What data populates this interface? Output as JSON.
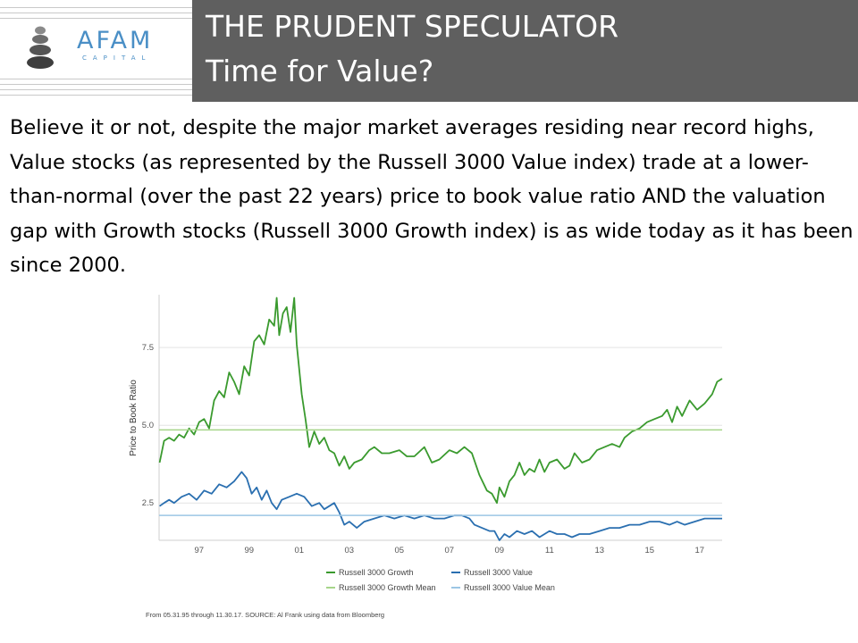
{
  "header": {
    "logo_text": "AFAM",
    "logo_subtext": "CAPITAL",
    "title_line1": "THE PRUDENT SPECULATOR",
    "title_line2": "Time for Value?"
  },
  "colors": {
    "header_bg": "#5f5f5f",
    "growth": "#3a9a2e",
    "value": "#2a6fb0",
    "growth_mean": "#a6d58a",
    "value_mean": "#9cc6e4"
  },
  "body_text": "Believe it or not, despite the major market averages residing near record highs, Value stocks (as represented by the Russell 3000 Value index) trade at a lower-than-normal (over the past 22 years) price to book value ratio AND the valuation gap with Growth stocks (Russell 3000 Growth index) is as wide today as it has been since 2000.",
  "source_note": "From 05.31.95 through 11.30.17. SOURCE: Al Frank using data from Bloomberg",
  "chart_data": {
    "type": "line",
    "ylabel": "Price to Book Ratio",
    "xlim": [
      1995.4,
      2017.9
    ],
    "ylim": [
      1.3,
      9.2
    ],
    "xticks": [
      {
        "value": 1997,
        "label": "97"
      },
      {
        "value": 1999,
        "label": "99"
      },
      {
        "value": 2001,
        "label": "01"
      },
      {
        "value": 2003,
        "label": "03"
      },
      {
        "value": 2005,
        "label": "05"
      },
      {
        "value": 2007,
        "label": "07"
      },
      {
        "value": 2009,
        "label": "09"
      },
      {
        "value": 2011,
        "label": "11"
      },
      {
        "value": 2013,
        "label": "13"
      },
      {
        "value": 2015,
        "label": "15"
      },
      {
        "value": 2017,
        "label": "17"
      }
    ],
    "yticks": [
      {
        "value": 2.5,
        "label": "2.5"
      },
      {
        "value": 5.0,
        "label": "5.0"
      },
      {
        "value": 7.5,
        "label": "7.5"
      }
    ],
    "grid": true,
    "legend_position": "bottom",
    "series": [
      {
        "name": "Russell 3000 Growth",
        "style": "line",
        "x": [
          1995.42,
          1995.6,
          1995.8,
          1996.0,
          1996.2,
          1996.4,
          1996.6,
          1996.8,
          1997.0,
          1997.2,
          1997.4,
          1997.6,
          1997.8,
          1998.0,
          1998.2,
          1998.4,
          1998.6,
          1998.8,
          1999.0,
          1999.2,
          1999.4,
          1999.6,
          1999.8,
          2000.0,
          2000.1,
          2000.2,
          2000.35,
          2000.5,
          2000.65,
          2000.8,
          2000.9,
          2001.0,
          2001.1,
          2001.25,
          2001.4,
          2001.6,
          2001.8,
          2002.0,
          2002.2,
          2002.4,
          2002.6,
          2002.8,
          2003.0,
          2003.2,
          2003.5,
          2003.8,
          2004.0,
          2004.3,
          2004.6,
          2005.0,
          2005.3,
          2005.6,
          2006.0,
          2006.3,
          2006.6,
          2007.0,
          2007.3,
          2007.6,
          2007.9,
          2008.2,
          2008.5,
          2008.7,
          2008.9,
          2009.0,
          2009.2,
          2009.4,
          2009.6,
          2009.8,
          2010.0,
          2010.2,
          2010.4,
          2010.6,
          2010.8,
          2011.0,
          2011.3,
          2011.6,
          2011.8,
          2012.0,
          2012.3,
          2012.6,
          2012.9,
          2013.2,
          2013.5,
          2013.8,
          2014.0,
          2014.3,
          2014.6,
          2014.9,
          2015.2,
          2015.5,
          2015.7,
          2015.9,
          2016.1,
          2016.3,
          2016.6,
          2016.9,
          2017.2,
          2017.5,
          2017.7,
          2017.9
        ],
        "y": [
          3.8,
          4.5,
          4.6,
          4.5,
          4.7,
          4.6,
          4.9,
          4.7,
          5.1,
          5.2,
          4.9,
          5.8,
          6.1,
          5.9,
          6.7,
          6.4,
          6.0,
          6.9,
          6.6,
          7.7,
          7.9,
          7.6,
          8.4,
          8.2,
          9.1,
          7.9,
          8.6,
          8.8,
          8.0,
          9.1,
          7.6,
          6.8,
          6.0,
          5.2,
          4.3,
          4.8,
          4.4,
          4.6,
          4.2,
          4.1,
          3.7,
          4.0,
          3.6,
          3.8,
          3.9,
          4.2,
          4.3,
          4.1,
          4.1,
          4.2,
          4.0,
          4.0,
          4.3,
          3.8,
          3.9,
          4.2,
          4.1,
          4.3,
          4.1,
          3.4,
          2.9,
          2.8,
          2.5,
          3.0,
          2.7,
          3.2,
          3.4,
          3.8,
          3.4,
          3.6,
          3.5,
          3.9,
          3.5,
          3.8,
          3.9,
          3.6,
          3.7,
          4.1,
          3.8,
          3.9,
          4.2,
          4.3,
          4.4,
          4.3,
          4.6,
          4.8,
          4.9,
          5.1,
          5.2,
          5.3,
          5.5,
          5.1,
          5.6,
          5.3,
          5.8,
          5.5,
          5.7,
          6.0,
          6.4,
          6.5
        ]
      },
      {
        "name": "Russell 3000 Value",
        "style": "line",
        "x": [
          1995.42,
          1995.6,
          1995.8,
          1996.0,
          1996.3,
          1996.6,
          1996.9,
          1997.2,
          1997.5,
          1997.8,
          1998.1,
          1998.4,
          1998.7,
          1998.9,
          1999.1,
          1999.3,
          1999.5,
          1999.7,
          1999.9,
          2000.1,
          2000.3,
          2000.6,
          2000.9,
          2001.2,
          2001.5,
          2001.8,
          2002.0,
          2002.2,
          2002.4,
          2002.6,
          2002.8,
          2003.0,
          2003.3,
          2003.6,
          2004.0,
          2004.4,
          2004.8,
          2005.2,
          2005.6,
          2006.0,
          2006.4,
          2006.8,
          2007.2,
          2007.5,
          2007.8,
          2008.0,
          2008.3,
          2008.6,
          2008.8,
          2009.0,
          2009.2,
          2009.4,
          2009.7,
          2010.0,
          2010.3,
          2010.6,
          2011.0,
          2011.3,
          2011.6,
          2011.9,
          2012.2,
          2012.6,
          2013.0,
          2013.4,
          2013.8,
          2014.2,
          2014.6,
          2015.0,
          2015.4,
          2015.8,
          2016.1,
          2016.4,
          2016.8,
          2017.2,
          2017.6,
          2017.9
        ],
        "y": [
          2.4,
          2.5,
          2.6,
          2.5,
          2.7,
          2.8,
          2.6,
          2.9,
          2.8,
          3.1,
          3.0,
          3.2,
          3.5,
          3.3,
          2.8,
          3.0,
          2.6,
          2.9,
          2.5,
          2.3,
          2.6,
          2.7,
          2.8,
          2.7,
          2.4,
          2.5,
          2.3,
          2.4,
          2.5,
          2.2,
          1.8,
          1.9,
          1.7,
          1.9,
          2.0,
          2.1,
          2.0,
          2.1,
          2.0,
          2.1,
          2.0,
          2.0,
          2.1,
          2.1,
          2.0,
          1.8,
          1.7,
          1.6,
          1.6,
          1.3,
          1.5,
          1.4,
          1.6,
          1.5,
          1.6,
          1.4,
          1.6,
          1.5,
          1.5,
          1.4,
          1.5,
          1.5,
          1.6,
          1.7,
          1.7,
          1.8,
          1.8,
          1.9,
          1.9,
          1.8,
          1.9,
          1.8,
          1.9,
          2.0,
          2.0,
          2.0
        ]
      },
      {
        "name": "Russell 3000 Growth Mean",
        "style": "mean",
        "value": 4.85
      },
      {
        "name": "Russell 3000 Value Mean",
        "style": "mean",
        "value": 2.1
      }
    ]
  }
}
